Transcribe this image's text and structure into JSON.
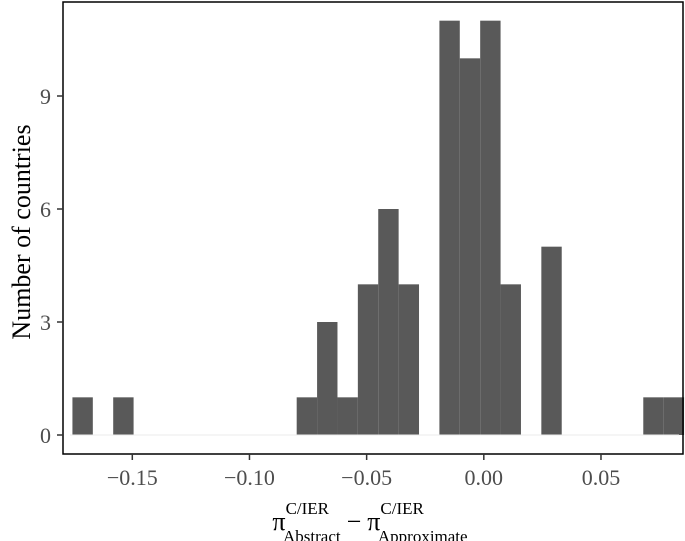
{
  "chart_data": {
    "type": "bar",
    "subtype": "histogram",
    "bin_width": 0.0087,
    "xlim": [
      -0.18,
      0.085
    ],
    "ylim": [
      0,
      12
    ],
    "x_ticks": [
      -0.15,
      -0.1,
      -0.05,
      0.0,
      0.05
    ],
    "x_tick_labels": [
      "−0.15",
      "−0.10",
      "−0.05",
      "0.00",
      "0.05"
    ],
    "y_ticks": [
      0,
      3,
      6,
      9
    ],
    "y_tick_labels": [
      "0",
      "3",
      "6",
      "9"
    ],
    "ylabel": "Number of countries",
    "xlabel": {
      "symbol": "π",
      "sup": "C/IER",
      "sub_left": "Abstract",
      "minus": "−",
      "sub_right": "Approximate"
    },
    "bins": [
      {
        "x": -0.1712,
        "count": 1
      },
      {
        "x": -0.1538,
        "count": 1
      },
      {
        "x": -0.0755,
        "count": 1
      },
      {
        "x": -0.0668,
        "count": 3
      },
      {
        "x": -0.0581,
        "count": 1
      },
      {
        "x": -0.0494,
        "count": 4
      },
      {
        "x": -0.0407,
        "count": 6
      },
      {
        "x": -0.032,
        "count": 4
      },
      {
        "x": -0.0146,
        "count": 11
      },
      {
        "x": -0.0059,
        "count": 10
      },
      {
        "x": 0.0028,
        "count": 11
      },
      {
        "x": 0.0115,
        "count": 4
      },
      {
        "x": 0.0289,
        "count": 5
      },
      {
        "x": 0.0724,
        "count": 1
      },
      {
        "x": 0.0811,
        "count": 1
      }
    ],
    "colors": {
      "bar": "#595959",
      "axis": "#000000",
      "tick_text": "#4d4d4d",
      "baseline": "#ebebeb"
    },
    "grid": false,
    "legend": "none"
  }
}
